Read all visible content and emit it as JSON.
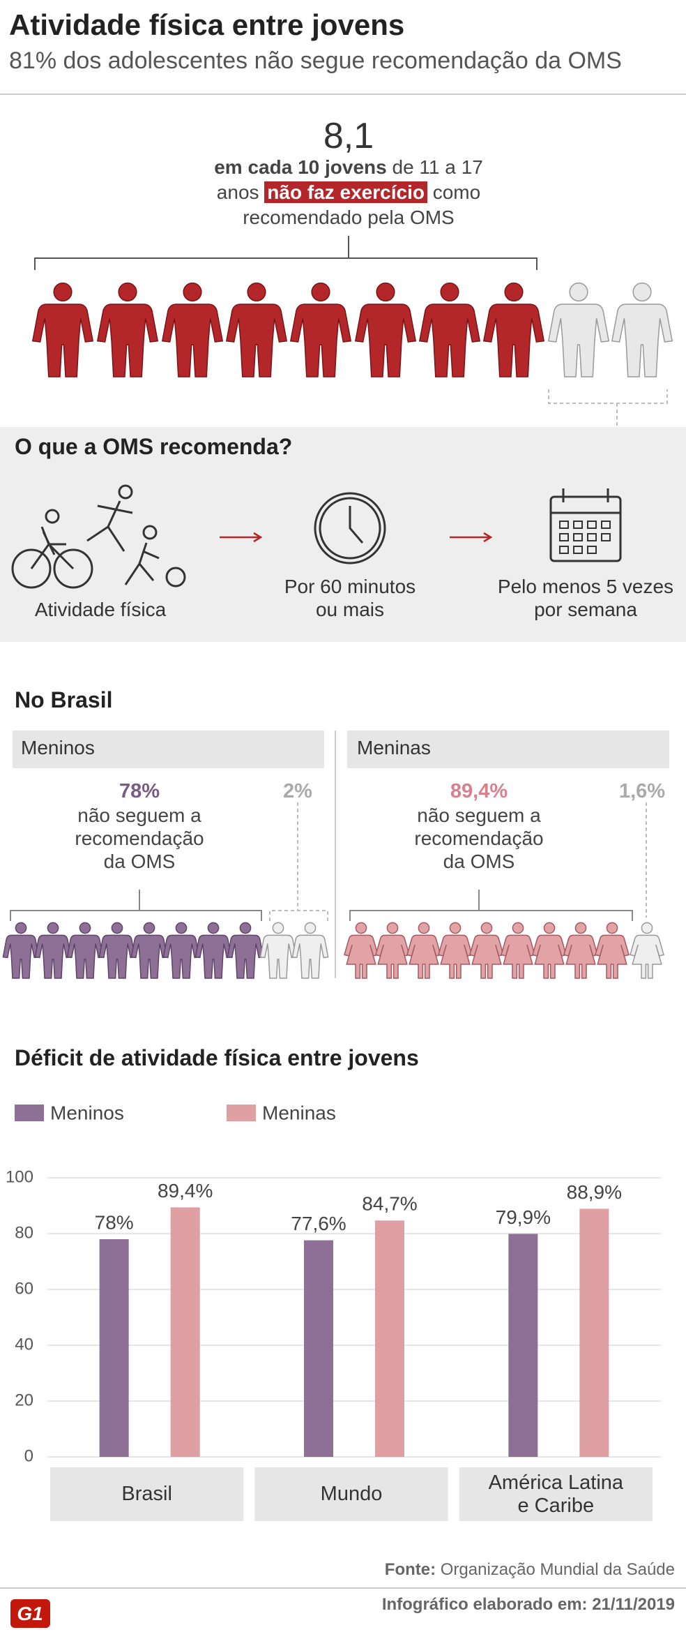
{
  "header": {
    "title": "Atividade física entre jovens",
    "subtitle": "81% dos adolescentes não segue recomendação da OMS"
  },
  "stat": {
    "number": "8,1",
    "line1_bold": "em cada 10 jovens",
    "line1_rest": "de 11 a 17",
    "line2_pre": "anos",
    "line2_highlight": "não faz exercício",
    "line2_post": "como",
    "line3": "recomendado pela OMS"
  },
  "recommendation": {
    "title": "O que a OMS recomenda?",
    "items": [
      {
        "lines": [
          "Atividade física"
        ]
      },
      {
        "lines": [
          "Por 60 minutos",
          "ou mais"
        ]
      },
      {
        "lines": [
          "Pelo menos 5 vezes",
          "por semana"
        ]
      }
    ]
  },
  "brasil": {
    "title": "No Brasil",
    "groups": [
      {
        "label": "Meninos",
        "percent": "78%",
        "lines": [
          "não seguem a",
          "recomendação",
          "da OMS"
        ],
        "remainder": "2%"
      },
      {
        "label": "Meninas",
        "percent": "89,4%",
        "lines": [
          "não seguem a",
          "recomendação",
          "da OMS"
        ],
        "remainder": "1,6%"
      }
    ]
  },
  "chart_data": {
    "type": "bar",
    "title": "Déficit de atividade física entre jovens",
    "categories": [
      "Brasil",
      "Mundo",
      "América Latina e Caribe"
    ],
    "series": [
      {
        "name": "Meninos",
        "color": "#8e7096",
        "values": [
          78,
          77.6,
          79.9
        ],
        "value_labels": [
          "78%",
          "77,6%",
          "79,9%"
        ]
      },
      {
        "name": "Meninas",
        "color": "#dea0a3",
        "values": [
          89.4,
          84.7,
          88.9
        ],
        "value_labels": [
          "89,4%",
          "84,7%",
          "88,9%"
        ]
      }
    ],
    "ylim": [
      0,
      100
    ],
    "yticks": [
      0,
      20,
      40,
      60,
      80,
      100
    ],
    "grid": true,
    "legend": "top-left"
  },
  "footer": {
    "source_label": "Fonte:",
    "source": "Organização Mundial da Saúde",
    "date_label": "Infográfico elaborado em:",
    "date": "21/11/2019",
    "logo": "G1"
  }
}
